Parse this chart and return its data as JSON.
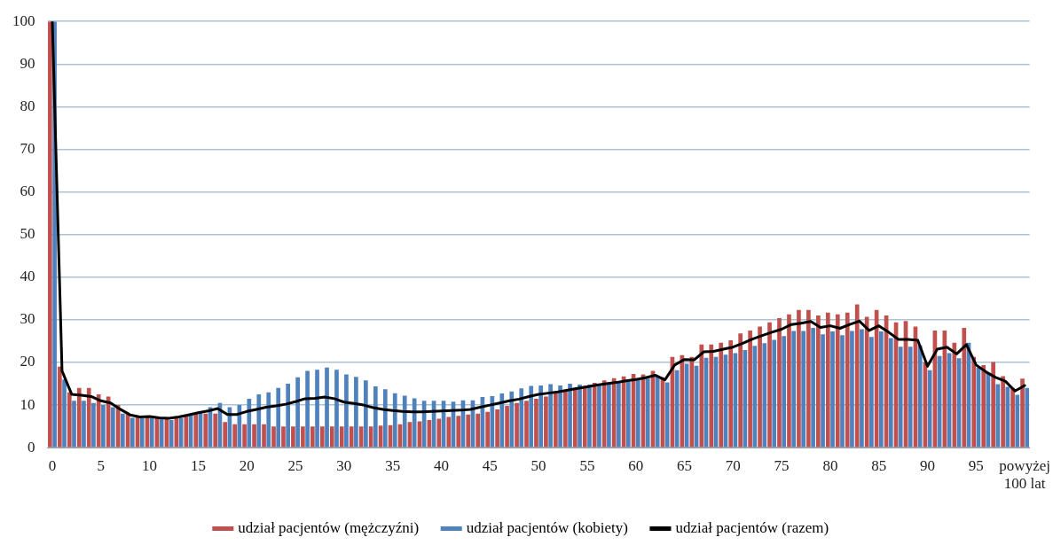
{
  "chart_data": {
    "type": "bar",
    "categories": [
      "0",
      null,
      null,
      null,
      null,
      "5",
      null,
      null,
      null,
      null,
      "10",
      null,
      null,
      null,
      null,
      "15",
      null,
      null,
      null,
      null,
      "20",
      null,
      null,
      null,
      null,
      "25",
      null,
      null,
      null,
      null,
      "30",
      null,
      null,
      null,
      null,
      "35",
      null,
      null,
      null,
      null,
      "40",
      null,
      null,
      null,
      null,
      "45",
      null,
      null,
      null,
      null,
      "50",
      null,
      null,
      null,
      null,
      "55",
      null,
      null,
      null,
      null,
      "60",
      null,
      null,
      null,
      null,
      "65",
      null,
      null,
      null,
      null,
      "70",
      null,
      null,
      null,
      null,
      "75",
      null,
      null,
      null,
      null,
      "80",
      null,
      null,
      null,
      null,
      "85",
      null,
      null,
      null,
      null,
      "90",
      null,
      null,
      null,
      null,
      "95",
      null,
      null,
      null,
      null,
      "powyżej 100 lat"
    ],
    "series": [
      {
        "name": "udział pacjentów (mężczyźni)",
        "type": "bar",
        "color": "#c0504d",
        "values": [
          100,
          19,
          13,
          14,
          14,
          12.5,
          12,
          10,
          8,
          7.5,
          7.5,
          7.2,
          7,
          7,
          7.5,
          8,
          8,
          8,
          6,
          5.5,
          5.5,
          5.5,
          5.5,
          5,
          5,
          5,
          5,
          5,
          5,
          5,
          5,
          5,
          5,
          5,
          5.2,
          5.3,
          5.5,
          6,
          6.2,
          6.5,
          6.8,
          7.2,
          7.5,
          7.8,
          8,
          8.4,
          9,
          9.8,
          10.5,
          11,
          11.5,
          12,
          12.8,
          13.5,
          14,
          14.5,
          15.2,
          15.8,
          16.3,
          16.7,
          17.3,
          17.2,
          18,
          16.5,
          21.3,
          21.7,
          21.3,
          24.2,
          24.2,
          24.6,
          25.2,
          26.8,
          27.5,
          28.4,
          29.4,
          30.4,
          31.3,
          32.3,
          32.3,
          31,
          31.7,
          31.3,
          31.7,
          33.6,
          30.7,
          32.3,
          31,
          29.4,
          29.7,
          28.4,
          20,
          27.5,
          27.5,
          24.6,
          28.1,
          21.3,
          19.4,
          20.1,
          16.8,
          14,
          16.2
        ]
      },
      {
        "name": "udział pacjentów (kobiety)",
        "type": "bar",
        "color": "#4f81bd",
        "values": [
          100,
          16,
          11,
          11,
          10.5,
          10,
          9.5,
          8,
          7,
          7,
          7,
          6.8,
          6.5,
          7,
          8,
          8.5,
          9.5,
          10.5,
          9.5,
          10,
          11.5,
          12.5,
          13,
          14,
          15,
          16.5,
          18,
          18.3,
          18.8,
          18.3,
          17.2,
          16.6,
          15.8,
          14.4,
          13.7,
          12.8,
          12.2,
          11.6,
          11,
          11,
          11,
          10.8,
          11.1,
          11.1,
          11.9,
          12.1,
          12.7,
          13.2,
          13.9,
          14.5,
          14.6,
          14.9,
          14.6,
          15,
          14.8,
          14.8,
          15,
          15.3,
          15.5,
          15.5,
          16,
          16.2,
          16.8,
          15.3,
          18.2,
          19.7,
          19.2,
          21.1,
          21.3,
          21.8,
          22.2,
          22.9,
          23.9,
          24.5,
          25.3,
          26.2,
          27.4,
          27.4,
          28.1,
          26.6,
          27.3,
          26.4,
          27.4,
          27.8,
          26,
          27.3,
          25.7,
          23.7,
          23.7,
          24,
          18.2,
          21.5,
          22.2,
          21,
          24.6,
          18.8,
          17.5,
          14.9,
          14.3,
          12.4,
          14
        ]
      },
      {
        "name": "udział pacjentów (razem)",
        "type": "line",
        "color": "#000000",
        "values": [
          100,
          18,
          12.5,
          12.3,
          12,
          11,
          10.5,
          9,
          7.7,
          7.2,
          7.3,
          7,
          6.9,
          7.2,
          7.7,
          8.2,
          8.6,
          9.2,
          7.8,
          7.8,
          8.5,
          9,
          9.5,
          9.8,
          10.2,
          10.8,
          11.5,
          11.6,
          11.9,
          11.5,
          10.7,
          10.4,
          10,
          9.4,
          9,
          8.7,
          8.5,
          8.4,
          8.4,
          8.5,
          8.6,
          8.7,
          8.8,
          9,
          9.5,
          10,
          10.5,
          11,
          11.4,
          12,
          12.5,
          12.8,
          13.1,
          13.5,
          13.9,
          14.3,
          14.7,
          15,
          15.3,
          15.7,
          16,
          16.4,
          17,
          15.9,
          19.4,
          20.7,
          20.6,
          22.5,
          22.6,
          23.1,
          23.6,
          24.5,
          25.5,
          26.3,
          27.1,
          27.8,
          28.9,
          29.2,
          29.6,
          28.2,
          28.6,
          28,
          28.9,
          29.7,
          27.5,
          28.6,
          27.1,
          25.4,
          25.4,
          25.2,
          19.1,
          23.1,
          23.6,
          22,
          24.2,
          19.4,
          17.8,
          16.5,
          15.6,
          13.3,
          14.6
        ]
      }
    ],
    "ylim": [
      0,
      100
    ],
    "yticks": [
      0,
      10,
      20,
      30,
      40,
      50,
      60,
      70,
      80,
      90,
      100
    ],
    "grid": "y",
    "legend": "bottom",
    "marker": "none",
    "line_style": "solid"
  }
}
